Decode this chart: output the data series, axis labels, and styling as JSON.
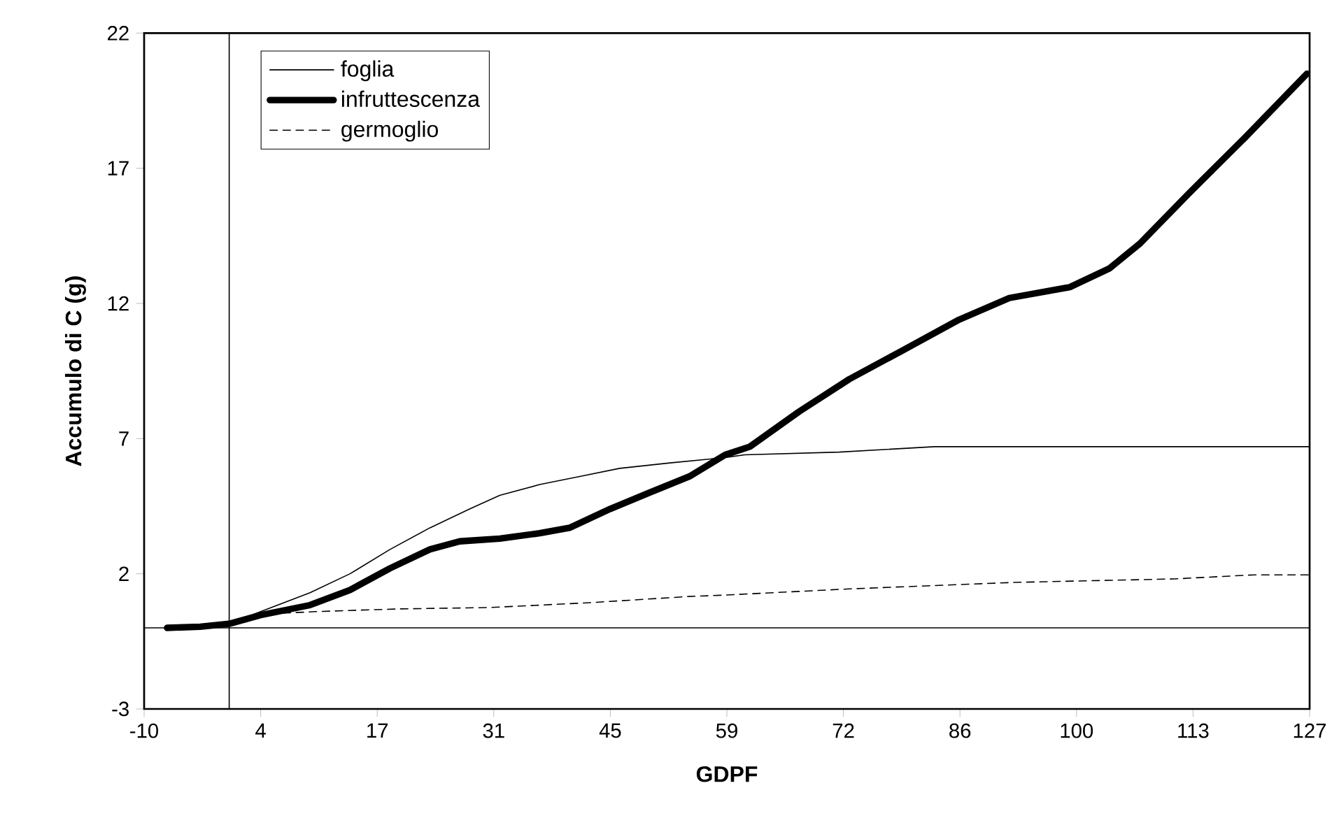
{
  "chart_data": {
    "type": "line",
    "xlabel": "GDPF",
    "ylabel": "Accumulo di C (g)",
    "xlim": [
      -10,
      127
    ],
    "ylim": [
      -3,
      22
    ],
    "xticks": [
      -10,
      {
        "value": 3.7,
        "label": "4"
      },
      {
        "value": 17.4,
        "label": "17"
      },
      {
        "value": 31.1,
        "label": "31"
      },
      {
        "value": 44.8,
        "label": "45"
      },
      {
        "value": 58.5,
        "label": "59"
      },
      {
        "value": 72.2,
        "label": "72"
      },
      {
        "value": 85.9,
        "label": "86"
      },
      {
        "value": 99.6,
        "label": "100"
      },
      {
        "value": 113.3,
        "label": "113"
      },
      127
    ],
    "yticks": [
      -3,
      2,
      7,
      12,
      17,
      22
    ],
    "grid": false,
    "legend": "top left",
    "marker": "none",
    "series": [
      {
        "name": "foglia",
        "color": "#000000",
        "line_style": "solid",
        "x": [
          -7.3,
          0,
          3.7,
          9.5,
          14.2,
          18.9,
          23.6,
          28.3,
          31.8,
          36.5,
          41.2,
          45.9,
          51.8,
          58.3,
          60.6,
          71.7,
          82.9,
          127
        ],
        "values": [
          0,
          0.15,
          0.6,
          1.3,
          2.0,
          2.9,
          3.7,
          4.4,
          4.9,
          5.3,
          5.6,
          5.9,
          6.1,
          6.3,
          6.4,
          6.5,
          6.7,
          6.7
        ]
      },
      {
        "name": "infruttescenza",
        "color": "#000000",
        "line_style": "solid",
        "x": [
          -7.3,
          -3.4,
          0,
          3.7,
          9.5,
          14.2,
          18.9,
          23.6,
          27.1,
          31.8,
          36.5,
          40.0,
          44.8,
          49.4,
          54.1,
          58.3,
          61.2,
          67.0,
          72.9,
          78.8,
          85.8,
          91.7,
          98.8,
          103.5,
          107.0,
          112.9,
          119.3,
          126.7
        ],
        "values": [
          0,
          0.04,
          0.15,
          0.47,
          0.84,
          1.4,
          2.2,
          2.9,
          3.2,
          3.3,
          3.5,
          3.7,
          4.4,
          5.0,
          5.6,
          6.4,
          6.7,
          8.0,
          9.2,
          10.2,
          11.4,
          12.2,
          12.6,
          13.3,
          14.2,
          16.1,
          18.1,
          20.5
        ]
      },
      {
        "name": "germoglio",
        "color": "#000000",
        "line_style": "dashed",
        "x": [
          -7.3,
          0,
          3.7,
          10.1,
          20.0,
          30.6,
          42.4,
          54.1,
          58.2,
          72.9,
          92.3,
          111.1,
          120.5,
          127
        ],
        "values": [
          0,
          0.15,
          0.5,
          0.6,
          0.7,
          0.75,
          0.93,
          1.16,
          1.21,
          1.44,
          1.68,
          1.81,
          1.96,
          1.96
        ]
      }
    ]
  }
}
